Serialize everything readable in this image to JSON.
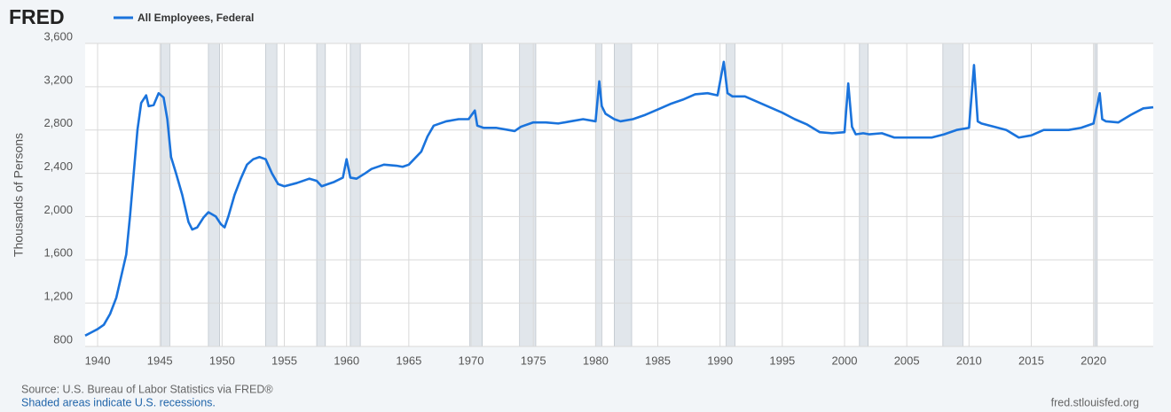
{
  "chart_data": {
    "type": "line",
    "brand": "FRED",
    "ylabel": "Thousands of Persons",
    "source": "Source: U.S. Bureau of Labor Statistics via FRED®",
    "note": "Shaded areas indicate U.S. recessions.",
    "site": "fred.stlouisfed.org",
    "xlim": [
      1939,
      2024.8
    ],
    "xticks": [
      1940,
      1945,
      1950,
      1955,
      1960,
      1965,
      1970,
      1975,
      1980,
      1985,
      1990,
      1995,
      2000,
      2005,
      2010,
      2015,
      2020
    ],
    "ylim": [
      800,
      3600
    ],
    "yticks": [
      800,
      {
        "value": 1200,
        "label": "1,200"
      },
      {
        "value": 1600,
        "label": "1,600"
      },
      {
        "value": 2000,
        "label": "2,000"
      },
      {
        "value": 2400,
        "label": "2,400"
      },
      {
        "value": 2800,
        "label": "2,800"
      },
      {
        "value": 3200,
        "label": "3,200"
      },
      {
        "value": 3600,
        "label": "3,600"
      }
    ],
    "grid": true,
    "recession_color": "#e1e6eb",
    "recessions": [
      [
        1945.1,
        1945.8
      ],
      [
        1948.9,
        1949.8
      ],
      [
        1953.5,
        1954.4
      ],
      [
        1957.6,
        1958.3
      ],
      [
        1960.3,
        1961.1
      ],
      [
        1969.9,
        1970.9
      ],
      [
        1973.9,
        1975.2
      ],
      [
        1980.0,
        1980.5
      ],
      [
        1981.5,
        1982.9
      ],
      [
        1990.5,
        1991.2
      ],
      [
        2001.2,
        2001.9
      ],
      [
        2007.9,
        2009.5
      ],
      [
        2020.1,
        2020.3
      ]
    ],
    "x": [
      1939.0,
      1939.5,
      1940,
      1940.5,
      1941,
      1941.5,
      1942,
      1942.3,
      1942.6,
      1942.9,
      1943.2,
      1943.5,
      1943.9,
      1944.1,
      1944.5,
      1944.9,
      1945.3,
      1945.6,
      1945.9,
      1946.3,
      1946.8,
      1947.3,
      1947.6,
      1948,
      1948.5,
      1948.9,
      1949.5,
      1949.9,
      1950.2,
      1950.5,
      1951,
      1951.5,
      1952,
      1952.5,
      1953,
      1953.5,
      1954,
      1954.5,
      1955,
      1956,
      1957,
      1957.6,
      1958,
      1958.5,
      1959,
      1959.7,
      1960.0,
      1960.3,
      1960.8,
      1961.5,
      1962,
      1963,
      1964,
      1964.5,
      1965,
      1966,
      1966.5,
      1967,
      1968,
      1969,
      1969.8,
      1970.3,
      1970.5,
      1971,
      1972,
      1973,
      1973.5,
      1974,
      1975,
      1976,
      1977,
      1978,
      1979,
      1980.0,
      1980.3,
      1980.5,
      1980.8,
      1981.5,
      1982,
      1983,
      1984,
      1985,
      1986,
      1987,
      1988,
      1989,
      1989.8,
      1990.3,
      1990.6,
      1991,
      1992,
      1993,
      1994,
      1995,
      1996,
      1997,
      1998,
      1999,
      2000.0,
      2000.3,
      2000.6,
      2000.9,
      2001.5,
      2002,
      2003,
      2004,
      2005,
      2006,
      2007,
      2008,
      2009,
      2010.0,
      2010.4,
      2010.7,
      2011,
      2012,
      2013,
      2014,
      2015,
      2016,
      2017,
      2018,
      2019,
      2020.0,
      2020.5,
      2020.7,
      2021,
      2022,
      2023,
      2024,
      2024.8
    ],
    "series": [
      {
        "name": "All Employees, Federal",
        "color": "#1a73dc",
        "values": [
          900,
          930,
          960,
          1000,
          1100,
          1250,
          1500,
          1650,
          2000,
          2400,
          2800,
          3050,
          3120,
          3020,
          3030,
          3140,
          3100,
          2900,
          2550,
          2400,
          2200,
          1950,
          1880,
          1900,
          1990,
          2040,
          2000,
          1930,
          1900,
          2000,
          2200,
          2350,
          2480,
          2530,
          2550,
          2530,
          2400,
          2300,
          2280,
          2310,
          2350,
          2330,
          2280,
          2300,
          2320,
          2360,
          2530,
          2360,
          2350,
          2400,
          2440,
          2480,
          2470,
          2460,
          2480,
          2600,
          2740,
          2840,
          2880,
          2900,
          2900,
          2980,
          2840,
          2820,
          2820,
          2800,
          2790,
          2830,
          2870,
          2870,
          2860,
          2880,
          2900,
          2880,
          3250,
          3020,
          2950,
          2900,
          2880,
          2900,
          2940,
          2990,
          3040,
          3080,
          3130,
          3140,
          3120,
          3430,
          3140,
          3110,
          3110,
          3060,
          3010,
          2960,
          2900,
          2850,
          2780,
          2770,
          2780,
          3230,
          2830,
          2760,
          2770,
          2760,
          2770,
          2730,
          2730,
          2730,
          2730,
          2760,
          2800,
          2820,
          3400,
          2880,
          2860,
          2830,
          2800,
          2730,
          2750,
          2800,
          2800,
          2800,
          2820,
          2860,
          3140,
          2900,
          2880,
          2870,
          2940,
          3000,
          3010
        ]
      }
    ]
  }
}
